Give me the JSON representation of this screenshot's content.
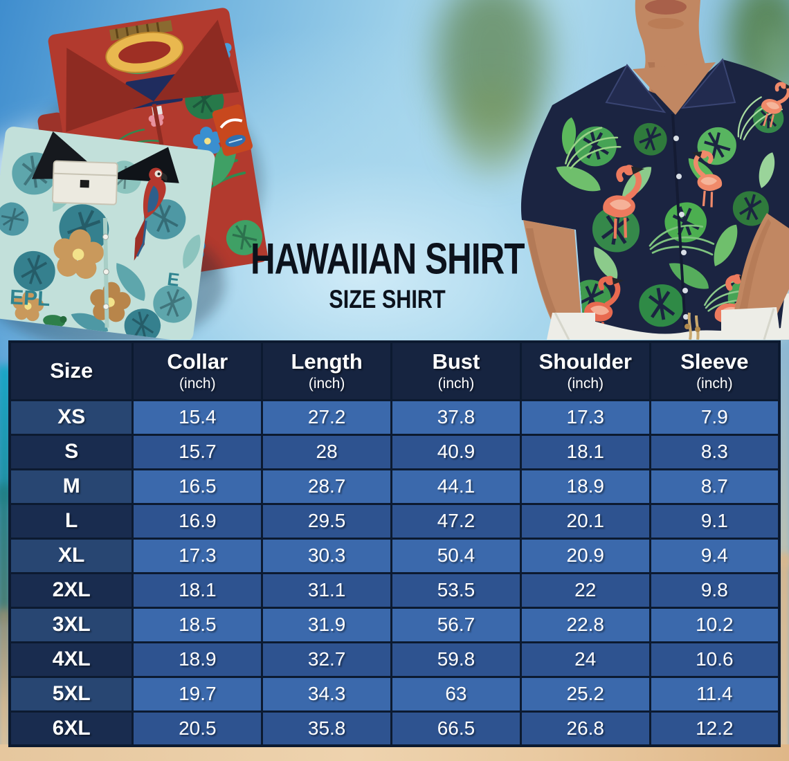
{
  "title": "HAWAIIAN SHIRT",
  "subtitle": "SIZE SHIRT",
  "photos": {
    "left": "folded red and teal hawaiian shirts",
    "right": "man wearing navy flamingo print hawaiian shirt"
  },
  "size_table": {
    "columns": [
      {
        "label": "Size",
        "unit": ""
      },
      {
        "label": "Collar",
        "unit": "(inch)"
      },
      {
        "label": "Length",
        "unit": "(inch)"
      },
      {
        "label": "Bust",
        "unit": "(inch)"
      },
      {
        "label": "Shoulder",
        "unit": "(inch)"
      },
      {
        "label": "Sleeve",
        "unit": "(inch)"
      }
    ],
    "rows": [
      {
        "size": "XS",
        "values": [
          "15.4",
          "27.2",
          "37.8",
          "17.3",
          "7.9"
        ]
      },
      {
        "size": "S",
        "values": [
          "15.7",
          "28",
          "40.9",
          "18.1",
          "8.3"
        ]
      },
      {
        "size": "M",
        "values": [
          "16.5",
          "28.7",
          "44.1",
          "18.9",
          "8.7"
        ]
      },
      {
        "size": "L",
        "values": [
          "16.9",
          "29.5",
          "47.2",
          "20.1",
          "9.1"
        ]
      },
      {
        "size": "XL",
        "values": [
          "17.3",
          "30.3",
          "50.4",
          "20.9",
          "9.4"
        ]
      },
      {
        "size": "2XL",
        "values": [
          "18.1",
          "31.1",
          "53.5",
          "22",
          "9.8"
        ]
      },
      {
        "size": "3XL",
        "values": [
          "18.5",
          "31.9",
          "56.7",
          "22.8",
          "10.2"
        ]
      },
      {
        "size": "4XL",
        "values": [
          "18.9",
          "32.7",
          "59.8",
          "24",
          "10.6"
        ]
      },
      {
        "size": "5XL",
        "values": [
          "19.7",
          "34.3",
          "63",
          "25.2",
          "11.4"
        ]
      },
      {
        "size": "6XL",
        "values": [
          "20.5",
          "35.8",
          "66.5",
          "26.8",
          "12.2"
        ]
      }
    ]
  },
  "colors": {
    "header_bg": "#162440",
    "row_light": "#3B69AC",
    "row_dark": "#2E5390",
    "label_light": "#284672",
    "label_dark": "#192C4F",
    "grid_line": "#0C1A30",
    "table_text": "#FFFFFF",
    "title_text": "#0C121C",
    "sky": "#9ED1EA",
    "sand": "#E2BE92"
  },
  "chart_data": {
    "type": "table",
    "title": "HAWAIIAN SHIRT",
    "subtitle": "SIZE SHIRT",
    "columns": [
      "Size",
      "Collar (inch)",
      "Length (inch)",
      "Bust (inch)",
      "Shoulder (inch)",
      "Sleeve (inch)"
    ],
    "rows": [
      [
        "XS",
        15.4,
        27.2,
        37.8,
        17.3,
        7.9
      ],
      [
        "S",
        15.7,
        28,
        40.9,
        18.1,
        8.3
      ],
      [
        "M",
        16.5,
        28.7,
        44.1,
        18.9,
        8.7
      ],
      [
        "L",
        16.9,
        29.5,
        47.2,
        20.1,
        9.1
      ],
      [
        "XL",
        17.3,
        30.3,
        50.4,
        20.9,
        9.4
      ],
      [
        "2XL",
        18.1,
        31.1,
        53.5,
        22,
        9.8
      ],
      [
        "3XL",
        18.5,
        31.9,
        56.7,
        22.8,
        10.2
      ],
      [
        "4XL",
        18.9,
        32.7,
        59.8,
        24,
        10.6
      ],
      [
        "5XL",
        19.7,
        34.3,
        63,
        25.2,
        11.4
      ],
      [
        "6XL",
        20.5,
        35.8,
        66.5,
        26.8,
        12.2
      ]
    ]
  }
}
